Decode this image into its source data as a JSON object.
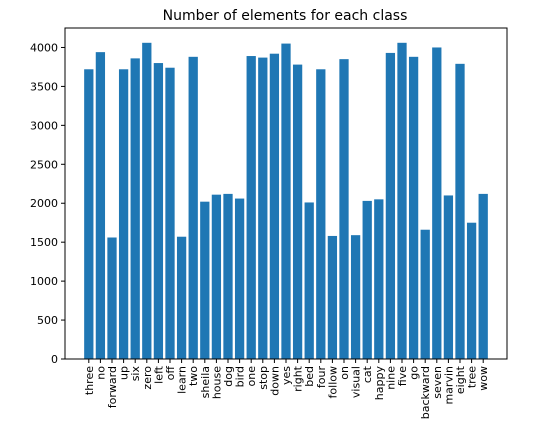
{
  "chart_data": {
    "type": "bar",
    "title": "Number of elements for each class",
    "xlabel": "",
    "ylabel": "",
    "ylim": [
      0,
      4250
    ],
    "yticks": [
      0,
      500,
      1000,
      1500,
      2000,
      2500,
      3000,
      3500,
      4000
    ],
    "grid": false,
    "bar_color": "#1f77b4",
    "categories": [
      "three",
      "no",
      "forward",
      "up",
      "six",
      "zero",
      "left",
      "off",
      "learn",
      "two",
      "sheila",
      "house",
      "dog",
      "bird",
      "one",
      "stop",
      "down",
      "yes",
      "right",
      "bed",
      "four",
      "follow",
      "on",
      "visual",
      "cat",
      "happy",
      "nine",
      "five",
      "go",
      "backward",
      "seven",
      "marvin",
      "eight",
      "tree",
      "wow"
    ],
    "values": [
      3720,
      3940,
      1560,
      3720,
      3860,
      4060,
      3800,
      3740,
      1570,
      3880,
      2020,
      2110,
      2120,
      2060,
      3890,
      3870,
      3920,
      4050,
      3780,
      2010,
      3720,
      1580,
      3850,
      1590,
      2030,
      2050,
      3930,
      4060,
      3880,
      1660,
      4000,
      2100,
      3790,
      1750,
      2120
    ]
  }
}
